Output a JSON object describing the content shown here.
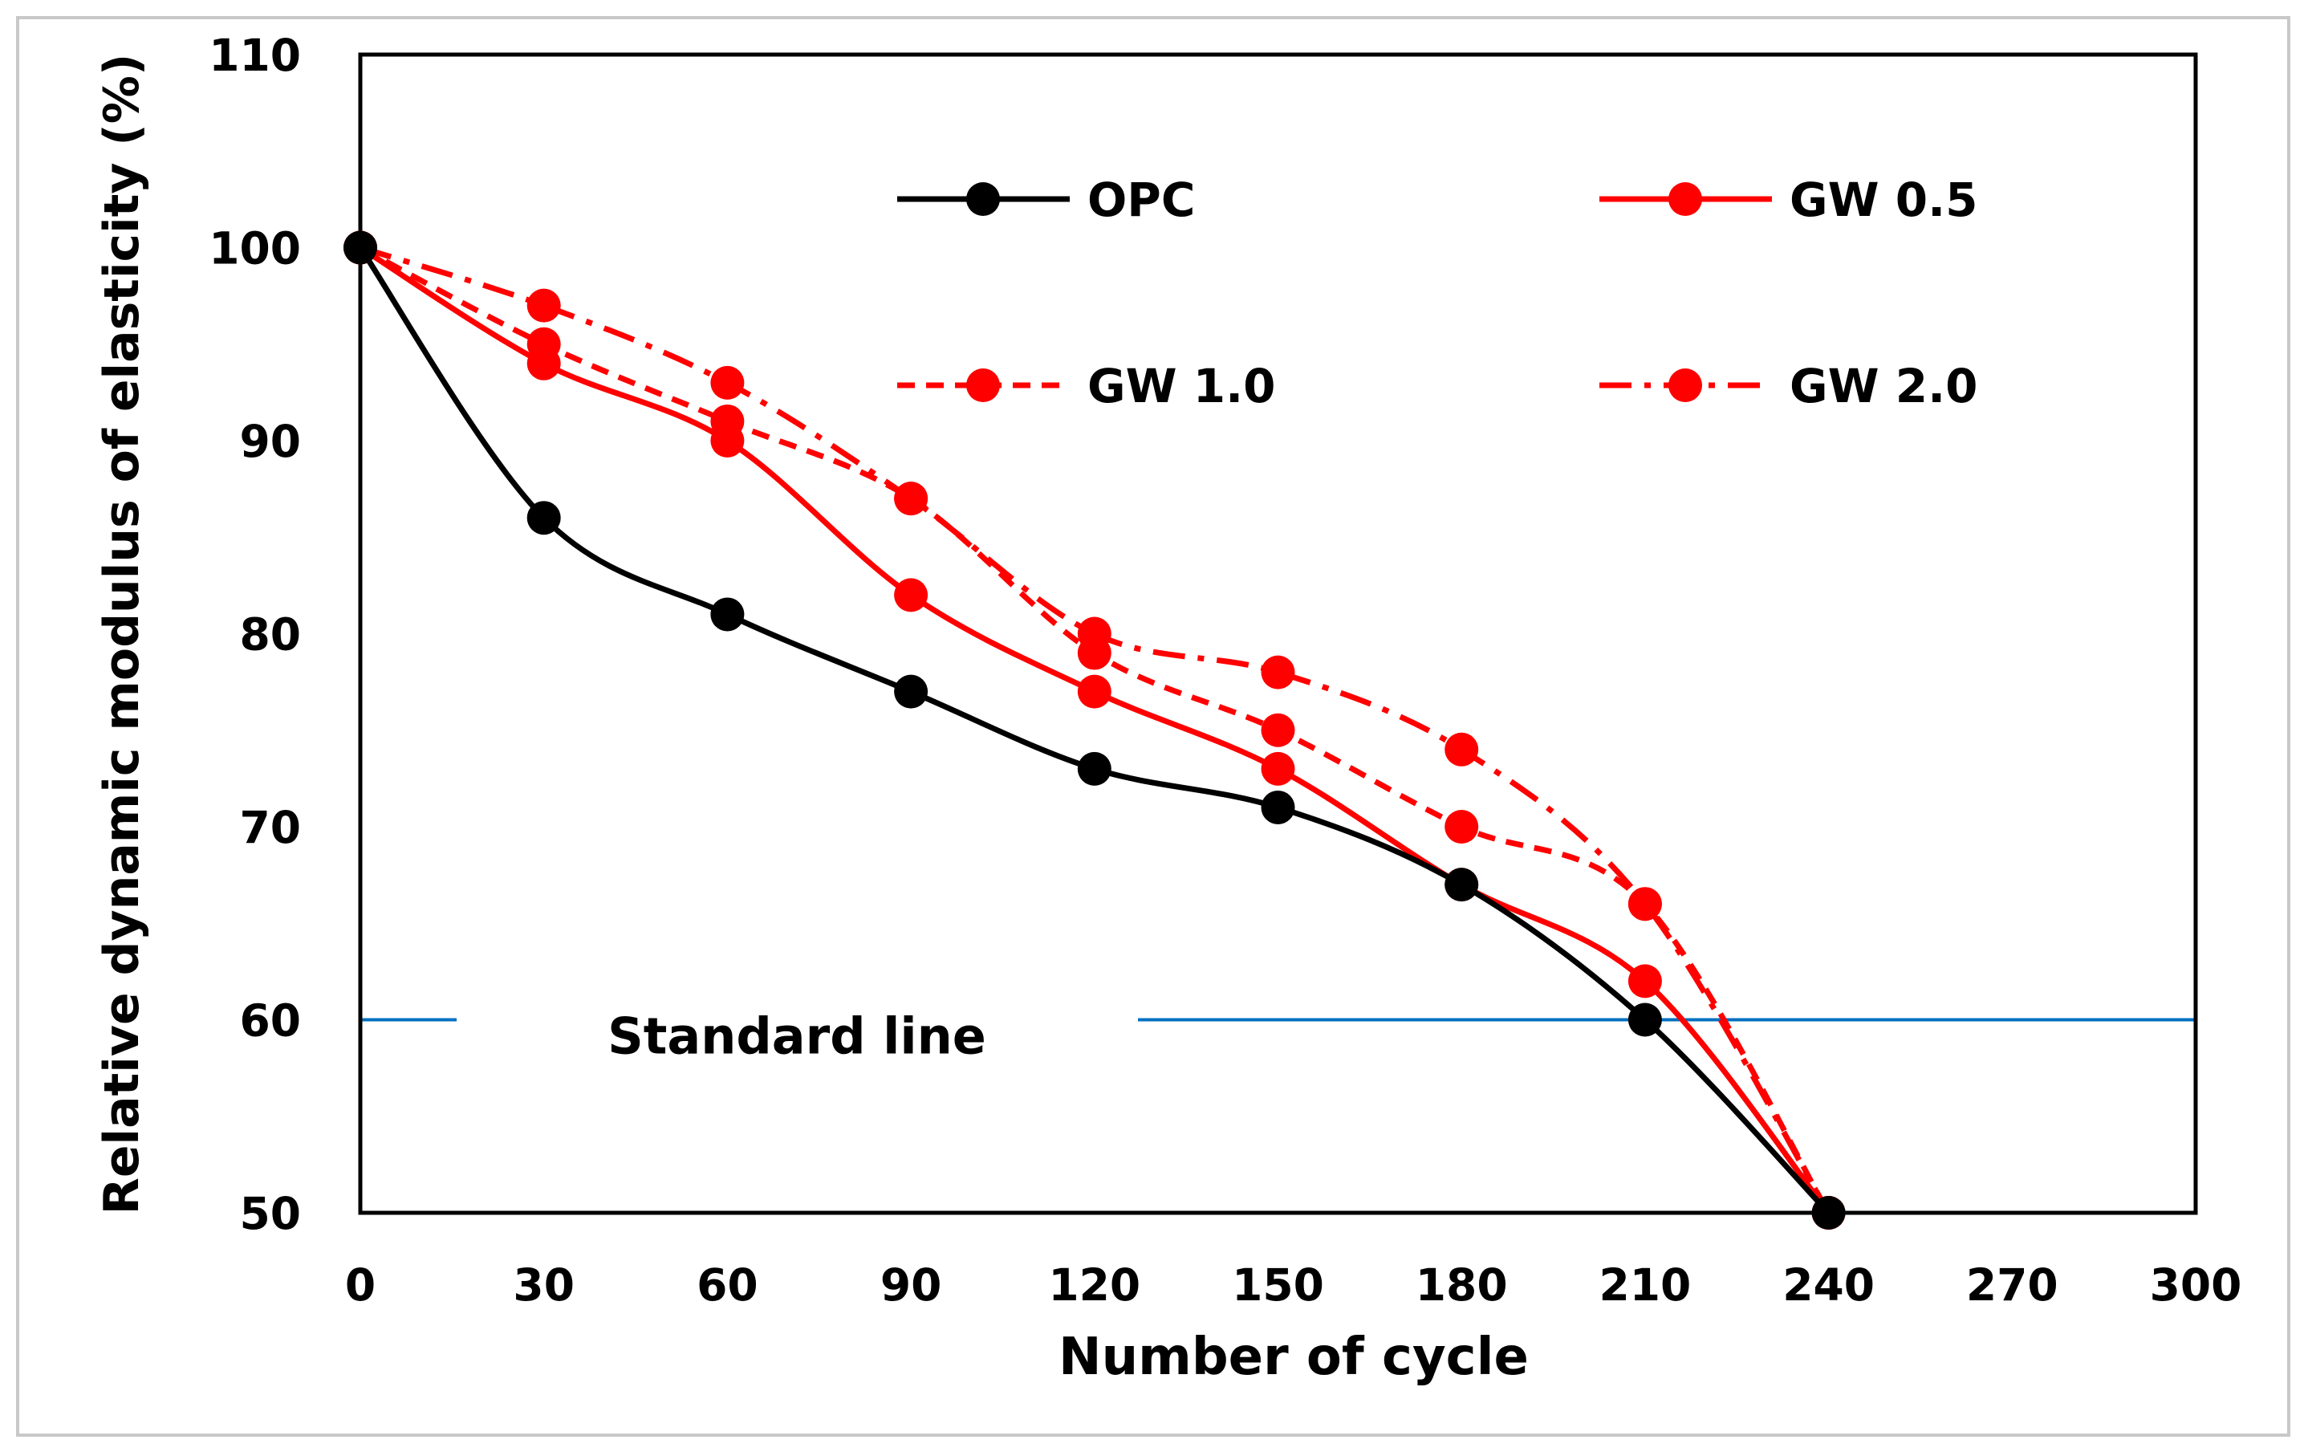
{
  "chart_data": {
    "type": "line",
    "title": "",
    "xlabel": "Number of cycle",
    "ylabel": "Relative dynamic modulus of elasticity (%)",
    "xlim": [
      0,
      300
    ],
    "ylim": [
      50,
      110
    ],
    "xticks": [
      0,
      30,
      60,
      90,
      120,
      150,
      180,
      210,
      240,
      270,
      300
    ],
    "yticks": [
      50,
      60,
      70,
      80,
      90,
      100,
      110
    ],
    "grid": false,
    "legend_position": "top",
    "x": [
      0,
      30,
      60,
      90,
      120,
      150,
      180,
      210,
      240
    ],
    "series": [
      {
        "name": "OPC",
        "values": [
          100,
          86,
          81,
          77,
          73,
          71,
          67,
          60,
          50
        ],
        "color": "#000000",
        "dash": "solid"
      },
      {
        "name": "GW 0.5",
        "values": [
          100,
          94,
          90,
          82,
          77,
          73,
          67,
          62,
          50
        ],
        "color": "#ff0000",
        "dash": "solid"
      },
      {
        "name": "GW 1.0",
        "values": [
          100,
          95,
          91,
          87,
          79,
          75,
          70,
          66,
          50
        ],
        "color": "#ff0000",
        "dash": "dash"
      },
      {
        "name": "GW 2.0",
        "values": [
          100,
          97,
          93,
          87,
          80,
          78,
          74,
          66,
          50
        ],
        "color": "#ff0000",
        "dash": "dashdot"
      }
    ],
    "reference_line": {
      "label": "Standard line",
      "y": 60,
      "color": "#0070c0"
    }
  }
}
